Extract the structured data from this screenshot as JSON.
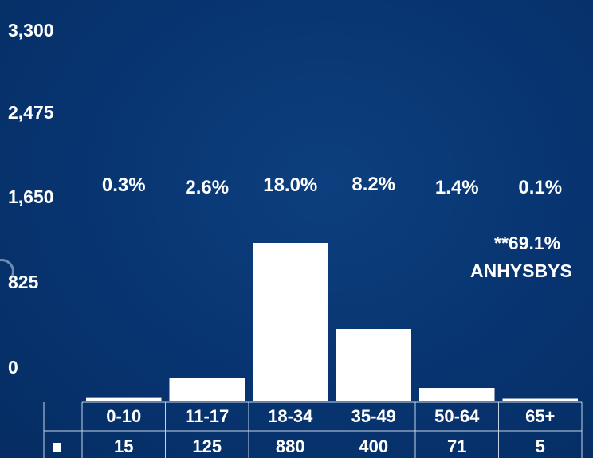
{
  "chart_data": {
    "type": "bar",
    "categories": [
      "0-10",
      "11-17",
      "18-34",
      "35-49",
      "50-64",
      "65+"
    ],
    "values": [
      15,
      125,
      880,
      400,
      71,
      5
    ],
    "percent_labels": [
      "0.3%",
      "2.6%",
      "18.0%",
      "8.2%",
      "1.4%",
      "0.1%"
    ],
    "y_ticks": [
      "3,300",
      "2,475",
      "1,650",
      "825",
      "0"
    ],
    "ylim": [
      0,
      3300
    ],
    "annotation": [
      "**69.1%",
      "ANHYSBYS"
    ],
    "legend_marker": "■",
    "title": "",
    "xlabel": "",
    "ylabel": "",
    "grid": false,
    "colors": {
      "background": "#073470",
      "bars": "#ffffff",
      "table_lines": "#c8d4e6",
      "text": "#ffffff"
    }
  }
}
